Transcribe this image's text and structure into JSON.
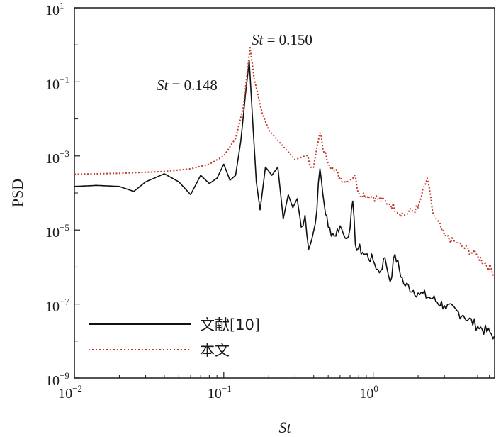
{
  "chart_data": {
    "type": "line",
    "xlabel": "St",
    "ylabel": "PSD",
    "x_scale": "log",
    "y_scale": "log",
    "xlim": [
      0.01,
      6.5
    ],
    "ylim": [
      1e-09,
      10
    ],
    "grid": false,
    "legend_placement": "bottom-left",
    "x_ticks": [
      {
        "value": 0.01,
        "base": "10",
        "exp": "−2"
      },
      {
        "value": 0.1,
        "base": "10",
        "exp": "−1"
      },
      {
        "value": 1,
        "base": "10",
        "exp": "0"
      }
    ],
    "y_ticks": [
      {
        "value": 10,
        "base": "10",
        "exp": "1"
      },
      {
        "value": 0.1,
        "base": "10",
        "exp": "−1"
      },
      {
        "value": 0.001,
        "base": "10",
        "exp": "−3"
      },
      {
        "value": 1e-05,
        "base": "10",
        "exp": "−5"
      },
      {
        "value": 1e-07,
        "base": "10",
        "exp": "−7"
      },
      {
        "value": 1e-09,
        "base": "10",
        "exp": "−9"
      }
    ],
    "annotations": [
      {
        "prefix": "St",
        "text": " = 0.150",
        "x": 0.15,
        "y": 0.85
      },
      {
        "prefix": "St",
        "text": " = 0.148",
        "x": 0.148,
        "y": 0.38
      }
    ],
    "series": [
      {
        "name": "文献[10]",
        "color": "#111111",
        "style": "solid",
        "points": [
          [
            0.01,
            0.00015
          ],
          [
            0.014,
            0.00016
          ],
          [
            0.02,
            0.00015
          ],
          [
            0.025,
            0.00011
          ],
          [
            0.03,
            0.0002
          ],
          [
            0.04,
            0.00033
          ],
          [
            0.05,
            0.0002
          ],
          [
            0.06,
            9e-05
          ],
          [
            0.07,
            0.0003
          ],
          [
            0.08,
            0.00018
          ],
          [
            0.09,
            0.00025
          ],
          [
            0.1,
            0.0006
          ],
          [
            0.11,
            0.00022
          ],
          [
            0.12,
            0.0003
          ],
          [
            0.13,
            0.0025
          ],
          [
            0.14,
            0.05
          ],
          [
            0.148,
            0.38
          ],
          [
            0.155,
            0.015
          ],
          [
            0.165,
            0.0002
          ],
          [
            0.175,
            3.5e-05
          ],
          [
            0.19,
            0.0005
          ],
          [
            0.21,
            0.0003
          ],
          [
            0.23,
            0.0005
          ],
          [
            0.25,
            2e-05
          ],
          [
            0.27,
            9e-05
          ],
          [
            0.29,
            4e-05
          ],
          [
            0.31,
            7e-05
          ],
          [
            0.33,
            1.2e-05
          ],
          [
            0.35,
            2.5e-05
          ],
          [
            0.37,
            3e-06
          ],
          [
            0.39,
            6e-06
          ],
          [
            0.41,
            1.5e-05
          ],
          [
            0.44,
            0.00045
          ],
          [
            0.47,
            5e-05
          ],
          [
            0.5,
            1.2e-05
          ],
          [
            0.55,
            7e-06
          ],
          [
            0.6,
            1.3e-05
          ],
          [
            0.65,
            6e-06
          ],
          [
            0.7,
            1.1e-05
          ],
          [
            0.73,
            6e-05
          ],
          [
            0.76,
            4e-06
          ],
          [
            0.85,
            2.5e-06
          ],
          [
            1.0,
            1.5e-06
          ],
          [
            1.1,
            7e-07
          ],
          [
            1.2,
            1.8e-06
          ],
          [
            1.3,
            4e-07
          ],
          [
            1.4,
            2.2e-06
          ],
          [
            1.6,
            3.5e-07
          ],
          [
            2.0,
            2e-07
          ],
          [
            2.5,
            1.4e-07
          ],
          [
            3.0,
            9e-08
          ],
          [
            4.0,
            5e-08
          ],
          [
            5.0,
            2.5e-08
          ],
          [
            6.5,
            1.4e-08
          ]
        ]
      },
      {
        "name": "本文",
        "color": "#c0392b",
        "style": "dotted",
        "points": [
          [
            0.01,
            0.00032
          ],
          [
            0.02,
            0.00034
          ],
          [
            0.04,
            0.00038
          ],
          [
            0.06,
            0.00045
          ],
          [
            0.08,
            0.0006
          ],
          [
            0.1,
            0.001
          ],
          [
            0.12,
            0.003
          ],
          [
            0.135,
            0.02
          ],
          [
            0.15,
            0.85
          ],
          [
            0.16,
            0.12
          ],
          [
            0.18,
            0.015
          ],
          [
            0.2,
            0.005
          ],
          [
            0.25,
            0.0018
          ],
          [
            0.3,
            0.0008
          ],
          [
            0.35,
            0.001
          ],
          [
            0.4,
            0.0005
          ],
          [
            0.44,
            0.0042
          ],
          [
            0.47,
            0.0012
          ],
          [
            0.55,
            0.0004
          ],
          [
            0.65,
            0.0002
          ],
          [
            0.75,
            0.0003
          ],
          [
            0.8,
            0.0001
          ],
          [
            1.0,
            8e-05
          ],
          [
            1.3,
            5e-05
          ],
          [
            1.6,
            2.5e-05
          ],
          [
            2.0,
            4e-05
          ],
          [
            2.3,
            0.00025
          ],
          [
            2.5,
            3e-05
          ],
          [
            3.0,
            7e-06
          ],
          [
            4.0,
            3.5e-06
          ],
          [
            5.0,
            2e-06
          ],
          [
            6.5,
            7e-07
          ]
        ]
      }
    ]
  }
}
